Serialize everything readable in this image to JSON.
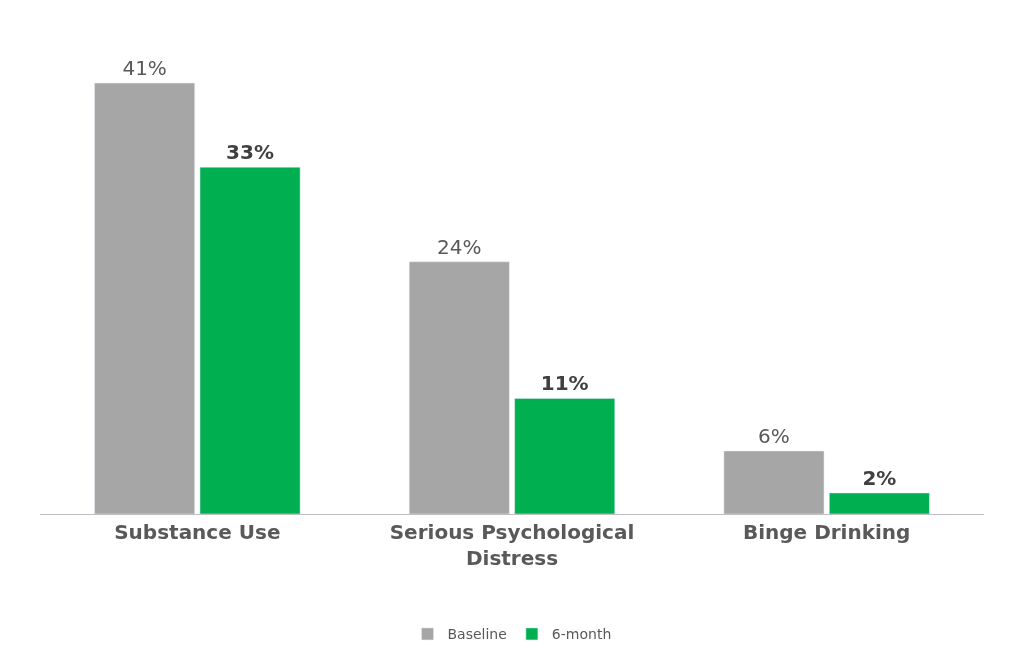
{
  "chart_data": {
    "type": "bar",
    "categories": [
      "Substance Use",
      "Serious Psychological Distress",
      "Binge Drinking"
    ],
    "series": [
      {
        "name": "Baseline",
        "color": "#a6a6a6",
        "values": [
          41,
          24,
          6
        ],
        "value_labels": [
          "41%",
          "24%",
          "6%"
        ]
      },
      {
        "name": "6-month",
        "color": "#00b050",
        "values": [
          33,
          11,
          2
        ],
        "value_labels": [
          "33%",
          "11%",
          "2%"
        ]
      }
    ],
    "legend": "bottom"
  }
}
